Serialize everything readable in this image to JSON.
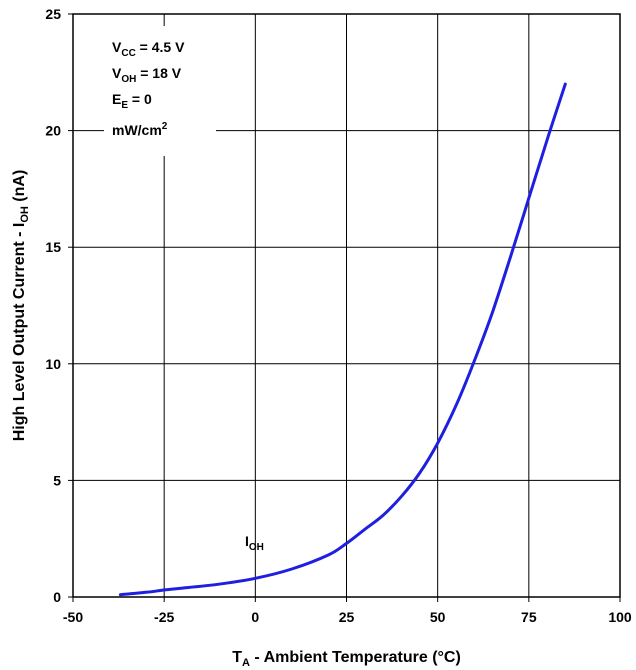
{
  "chart_data": {
    "type": "line",
    "title": "",
    "xlabel": {
      "main": "T",
      "sub": "A",
      "rest": " - Ambient Temperature (°C)"
    },
    "ylabel": {
      "main": "High Level Output Current - I",
      "sub": "OH",
      "rest": " (nA)"
    },
    "xlim": [
      -50,
      100
    ],
    "ylim": [
      0,
      25
    ],
    "x_ticks": [
      "-50",
      "-25",
      "0",
      "25",
      "50",
      "75",
      "100"
    ],
    "y_ticks": [
      "0",
      "5",
      "10",
      "15",
      "20",
      "25"
    ],
    "grid": true,
    "conditions": [
      {
        "main": "V",
        "sub": "CC",
        "rest": " = 4.5 V",
        "sup": ""
      },
      {
        "main": "V",
        "sub": "OH",
        "rest": " = 18 V",
        "sup": ""
      },
      {
        "main": "E",
        "sub": "E",
        "rest": " = 0",
        "sup": ""
      },
      {
        "main": "mW/cm",
        "sub": "",
        "rest": "",
        "sup": "2"
      }
    ],
    "series": [
      {
        "name": {
          "main": "I",
          "sub": "OH"
        },
        "color": "#1f1fe0",
        "x": [
          -37,
          -30,
          -25,
          -20,
          -10,
          0,
          10,
          20,
          25,
          30,
          35,
          40,
          45,
          50,
          55,
          60,
          65,
          70,
          75,
          80,
          85
        ],
        "y": [
          0.1,
          0.2,
          0.3,
          0.38,
          0.55,
          0.8,
          1.2,
          1.8,
          2.3,
          2.9,
          3.5,
          4.3,
          5.3,
          6.6,
          8.2,
          10.1,
          12.2,
          14.6,
          17.1,
          19.6,
          22.0
        ]
      }
    ]
  }
}
